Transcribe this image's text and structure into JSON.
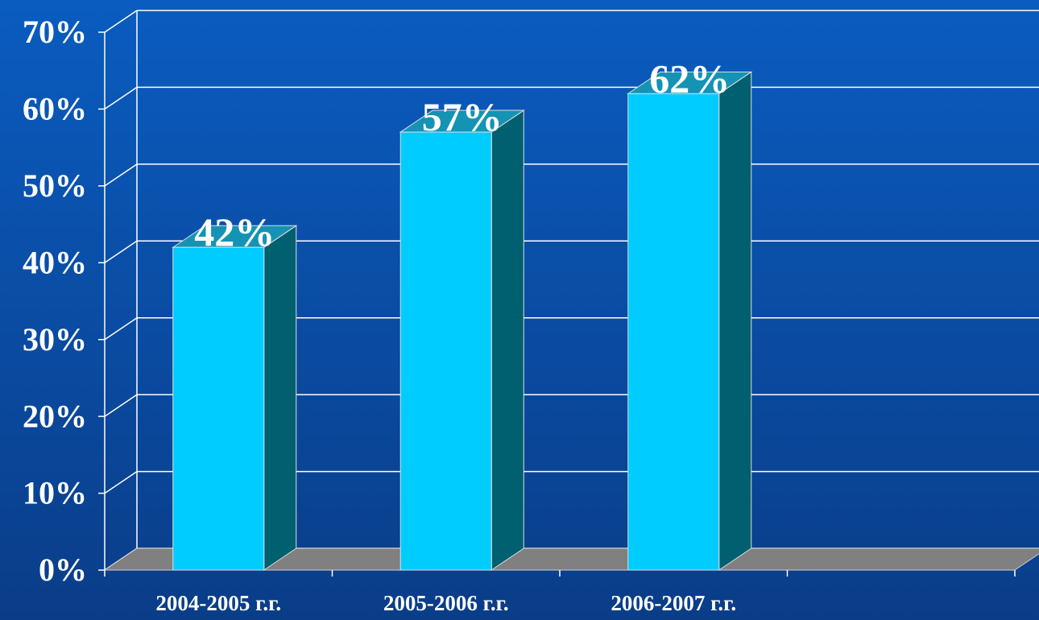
{
  "chart_data": {
    "type": "bar3d",
    "categories": [
      "2004-2005 г.г.",
      "2005-2006 г.г.",
      "2006-2007 г.г.",
      null
    ],
    "values": [
      42,
      57,
      62,
      null
    ],
    "value_labels": [
      "42%",
      "57%",
      "62%",
      null
    ],
    "color": "#00ccff",
    "ylim": [
      0,
      70
    ],
    "yticks": [
      {
        "value": 0,
        "label": "0%"
      },
      {
        "value": 10,
        "label": "10%"
      },
      {
        "value": 20,
        "label": "20%"
      },
      {
        "value": 30,
        "label": "30%"
      },
      {
        "value": 40,
        "label": "40%"
      },
      {
        "value": 50,
        "label": "50%"
      },
      {
        "value": 60,
        "label": "60%"
      },
      {
        "value": 70,
        "label": "70%"
      }
    ],
    "grid": true
  }
}
